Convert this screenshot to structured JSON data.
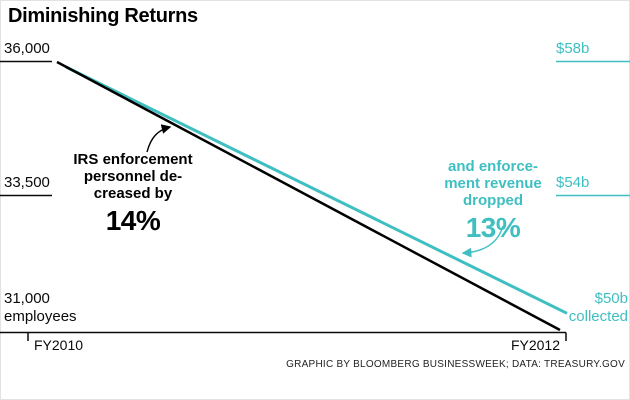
{
  "title": "Diminishing Returns",
  "footer": "GRAPHIC BY BLOOMBERG BUSINESSWEEK; DATA: TREASURY.GOV",
  "colors": {
    "personnel": "#000000",
    "revenue": "#3fbfc1"
  },
  "axes": {
    "left": {
      "t1": "36,000",
      "t2": "33,500",
      "t3": "31,000",
      "t3b": "employees"
    },
    "right": {
      "t1": "$58b",
      "t2": "$54b",
      "t3": "$50b",
      "t3b": "collected"
    },
    "x": {
      "start": "FY2010",
      "end": "FY2012"
    }
  },
  "annotations": {
    "personnel": {
      "l1": "IRS enforcement",
      "l2": "personnel de-",
      "l3": "creased by",
      "value": "14%"
    },
    "revenue": {
      "l1": "and enforce-",
      "l2": "ment revenue",
      "l3": "dropped",
      "value": "13%"
    }
  },
  "chart_data": {
    "type": "line",
    "title": "Diminishing Returns",
    "x": [
      "FY2010",
      "FY2012"
    ],
    "series": [
      {
        "name": "IRS enforcement personnel",
        "unit": "employees",
        "values": [
          36000,
          31000
        ],
        "color": "#000000",
        "axis": "left",
        "annotation": "IRS enforcement personnel decreased by 14%"
      },
      {
        "name": "Enforcement revenue collected",
        "unit": "$b",
        "values": [
          58,
          50.5
        ],
        "color": "#3fbfc1",
        "axis": "right",
        "annotation": "and enforcement revenue dropped 13%"
      }
    ],
    "left_axis": {
      "range": [
        31000,
        36000
      ],
      "ticks": [
        36000,
        33500,
        31000
      ],
      "tick_labels": [
        "36,000",
        "33,500",
        "31,000 employees"
      ]
    },
    "right_axis": {
      "range": [
        50,
        58
      ],
      "ticks": [
        58,
        54,
        50
      ],
      "tick_labels": [
        "$58b",
        "$54b",
        "$50b collected"
      ]
    },
    "legend": "none",
    "grid": "edge tick segments only",
    "source": "GRAPHIC BY BLOOMBERG BUSINESSWEEK; DATA: TREASURY.GOV"
  }
}
